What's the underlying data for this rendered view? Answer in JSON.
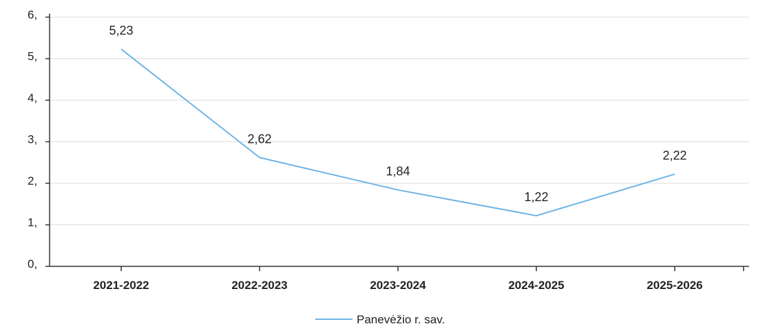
{
  "chart_data": {
    "type": "line",
    "categories": [
      "2021-2022",
      "2022-2023",
      "2023-2024",
      "2024-2025",
      "2025-2026"
    ],
    "series": [
      {
        "name": "Panevėžio r. sav.",
        "values": [
          5.23,
          2.62,
          1.84,
          1.22,
          2.22
        ],
        "value_labels": [
          "5,23",
          "2,62",
          "1,84",
          "1,22",
          "2,22"
        ],
        "color": "#6fb4e4"
      }
    ],
    "yticks": [
      "0,",
      "1,",
      "2,",
      "3,",
      "4,",
      "5,",
      "6,"
    ],
    "ylim": [
      0,
      6
    ],
    "grid": true,
    "legend": "bottom-center"
  }
}
